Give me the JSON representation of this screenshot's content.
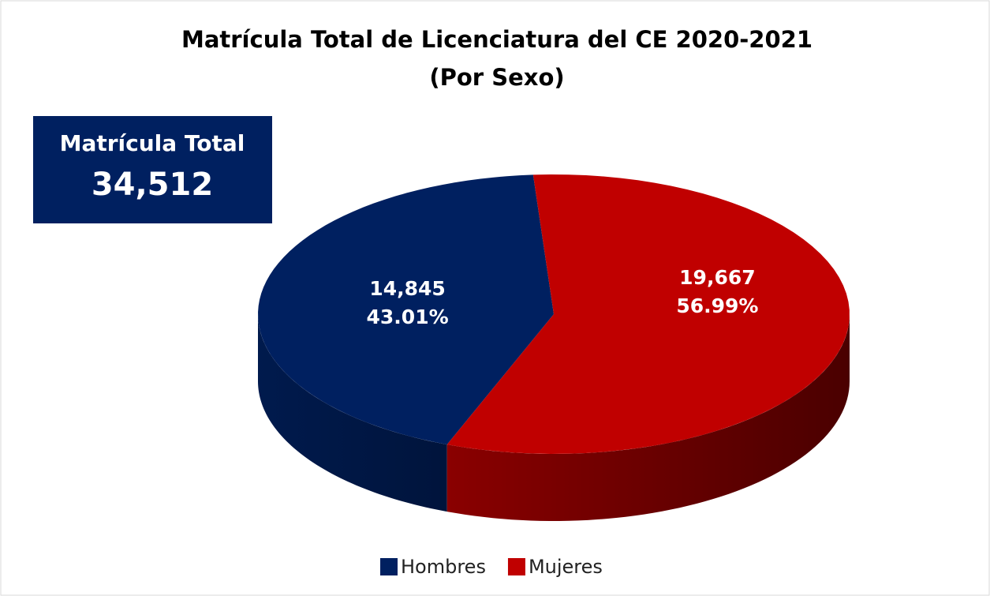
{
  "chart_data": {
    "type": "pie3d",
    "title": "Matrícula Total de Licenciatura del CE 2020-2021",
    "subtitle": "(Por Sexo)",
    "total_title": "Matrícula Total",
    "total": 34512,
    "total_label": "34,512",
    "categories": [
      "Hombres",
      "Mujeres"
    ],
    "values": [
      14845,
      19667
    ],
    "value_labels": [
      "14,845",
      "19,667"
    ],
    "percentages": [
      43.01,
      56.99
    ],
    "percentage_labels": [
      "43.01%",
      "56.99%"
    ],
    "colors": [
      "#002060",
      "#c00000"
    ],
    "legend": "bottom"
  }
}
